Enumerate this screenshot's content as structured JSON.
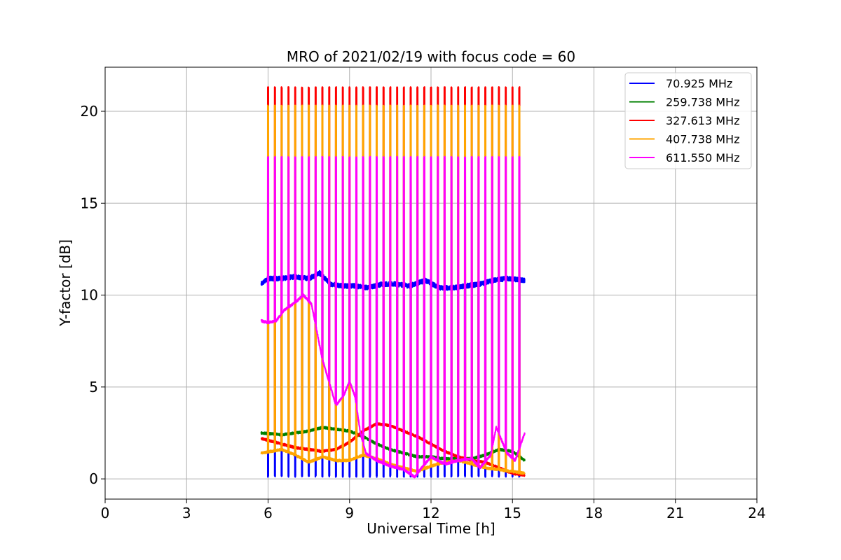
{
  "chart_data": {
    "type": "line",
    "title": "MRO of 2021/02/19 with focus code = 60",
    "xlabel": "Universal Time [h]",
    "ylabel": "Y-factor [dB]",
    "xlim": [
      0,
      24
    ],
    "ylim": [
      -1.1,
      22.4
    ],
    "xticks": [
      0,
      3,
      6,
      9,
      12,
      15,
      18,
      21,
      24
    ],
    "yticks": [
      0,
      5,
      10,
      15,
      20
    ],
    "grid": true,
    "legend_position": "top-right",
    "x_range_of_data": [
      5.75,
      15.45
    ],
    "pulse_period_h": 0.25,
    "pulse_start_h": 6.0,
    "series": [
      {
        "name": " 70.925 MHz",
        "color": "#0000ff",
        "x": [
          5.75,
          6.0,
          6.5,
          7.0,
          7.5,
          7.9,
          8.3,
          8.8,
          9.2,
          9.7,
          10.2,
          10.7,
          11.2,
          11.8,
          12.3,
          12.8,
          13.3,
          13.8,
          14.3,
          14.8,
          15.45
        ],
        "values": [
          10.6,
          10.9,
          10.9,
          11.0,
          10.9,
          11.2,
          10.6,
          10.5,
          10.5,
          10.4,
          10.6,
          10.6,
          10.5,
          10.8,
          10.4,
          10.4,
          10.5,
          10.6,
          10.8,
          10.9,
          10.8
        ],
        "pulse_low": 0.1
      },
      {
        "name": "259.738 MHz",
        "color": "#008000",
        "x": [
          5.75,
          6.5,
          7.0,
          7.5,
          8.0,
          8.5,
          9.0,
          9.5,
          10.0,
          10.5,
          11.0,
          11.5,
          12.0,
          12.5,
          13.0,
          13.5,
          14.0,
          14.5,
          15.0,
          15.45
        ],
        "values": [
          2.5,
          2.4,
          2.5,
          2.6,
          2.8,
          2.7,
          2.6,
          2.3,
          1.9,
          1.6,
          1.4,
          1.2,
          1.2,
          1.1,
          1.1,
          1.1,
          1.3,
          1.6,
          1.5,
          1.0
        ]
      },
      {
        "name": "327.613 MHz",
        "color": "#ff0000",
        "x": [
          5.75,
          6.5,
          7.0,
          7.5,
          8.0,
          8.5,
          9.0,
          9.5,
          10.0,
          10.5,
          11.0,
          11.5,
          12.0,
          12.5,
          13.0,
          13.5,
          14.0,
          14.5,
          15.0,
          15.45
        ],
        "values": [
          2.2,
          1.9,
          1.7,
          1.6,
          1.5,
          1.6,
          2.0,
          2.6,
          3.0,
          2.9,
          2.6,
          2.3,
          1.9,
          1.5,
          1.2,
          1.0,
          0.9,
          0.6,
          0.3,
          0.2
        ],
        "pulse_high": 21.3
      },
      {
        "name": "407.738 MHz",
        "color": "#ffa500",
        "x": [
          5.75,
          6.5,
          7.0,
          7.5,
          8.0,
          8.5,
          9.0,
          9.5,
          10.0,
          10.5,
          11.0,
          11.5,
          12.0,
          12.5,
          13.0,
          13.5,
          14.0,
          14.5,
          15.0,
          15.45
        ],
        "values": [
          1.4,
          1.6,
          1.3,
          0.9,
          1.2,
          1.0,
          1.0,
          1.3,
          1.1,
          0.8,
          0.6,
          0.4,
          0.7,
          0.9,
          1.0,
          0.8,
          0.6,
          0.5,
          0.4,
          0.3
        ],
        "pulse_high": 20.3
      },
      {
        "name": "611.550 MHz",
        "color": "#ff00ff",
        "x": [
          5.75,
          6.0,
          6.3,
          6.6,
          7.0,
          7.3,
          7.6,
          7.8,
          8.0,
          8.2,
          8.5,
          8.8,
          9.0,
          9.2,
          9.4,
          9.6,
          10.0,
          10.5,
          11.0,
          11.4,
          11.6,
          12.0,
          12.5,
          13.0,
          13.5,
          13.8,
          14.2,
          14.4,
          14.8,
          15.1,
          15.45
        ],
        "values": [
          8.6,
          8.5,
          8.6,
          9.2,
          9.6,
          10.0,
          9.5,
          8.0,
          6.5,
          5.5,
          4.0,
          4.6,
          5.3,
          4.5,
          2.5,
          1.4,
          1.0,
          0.7,
          0.5,
          0.1,
          0.5,
          1.2,
          0.8,
          1.0,
          1.1,
          0.6,
          1.3,
          2.8,
          1.4,
          1.0,
          2.5
        ],
        "pulse_high": 17.5
      }
    ]
  }
}
